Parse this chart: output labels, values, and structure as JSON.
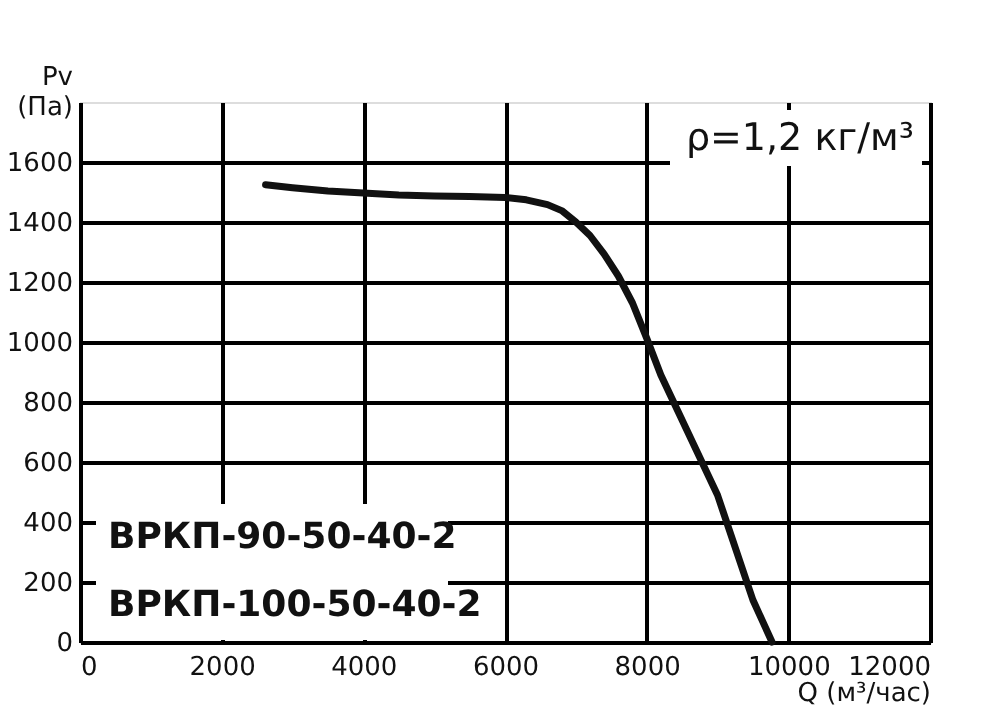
{
  "chart_data": {
    "type": "line",
    "xlabel": "Q (м³/час)",
    "ylabel": "Pv\n(Па)",
    "x": [
      2620,
      3000,
      3500,
      4000,
      4500,
      5000,
      5500,
      6000,
      6300,
      6600,
      6800,
      7000,
      7200,
      7400,
      7600,
      7800,
      8000,
      8200,
      8500,
      9000,
      9500,
      9770
    ],
    "series": [
      {
        "color": "#111111",
        "values": [
          1524,
          1514,
          1503,
          1497,
          1490,
          1487,
          1485,
          1482,
          1474,
          1458,
          1438,
          1400,
          1355,
          1293,
          1220,
          1130,
          1013,
          890,
          740,
          490,
          140,
          0
        ]
      }
    ],
    "xlim": [
      0,
      12000
    ],
    "xticks": [
      0,
      2000,
      4000,
      6000,
      8000,
      10000,
      12000
    ],
    "ylim": [
      0,
      1800
    ],
    "yticks": [
      0,
      200,
      400,
      600,
      800,
      1000,
      1200,
      1400,
      1600
    ],
    "grid": true,
    "marker": "none",
    "line_style": "solid",
    "annotations": [
      "ρ=1,2 кг/м³",
      "ВРКП-90-50-40-2",
      "ВРКП-100-50-40-2"
    ]
  }
}
